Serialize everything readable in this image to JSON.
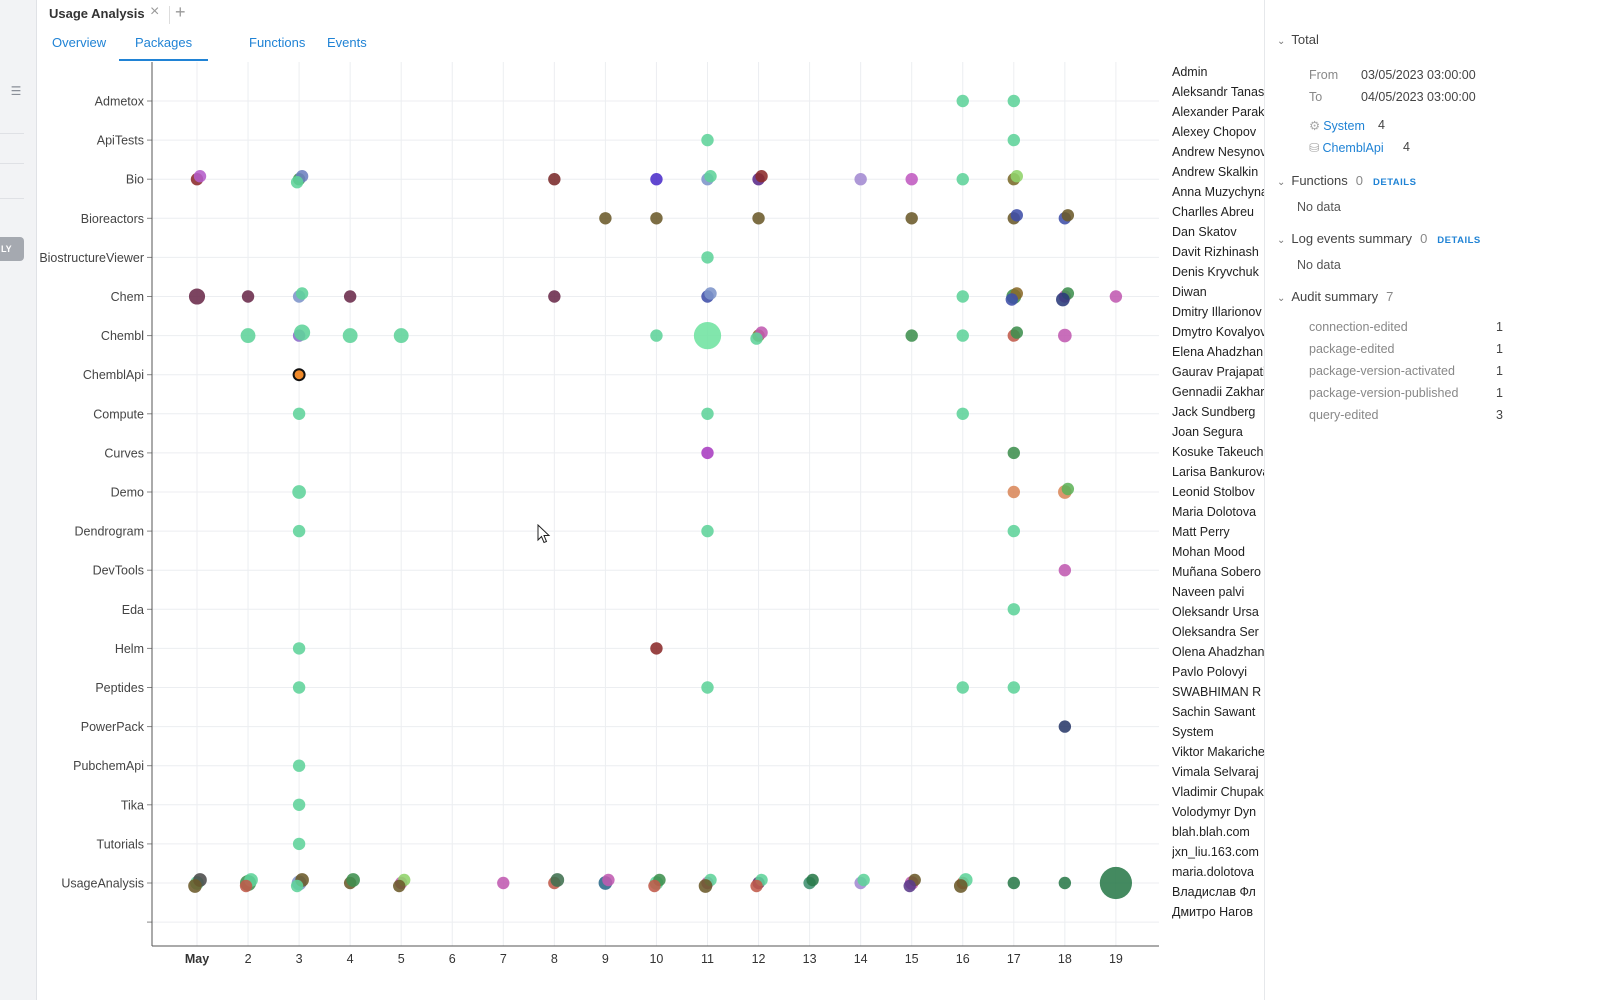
{
  "window": {
    "tab_title": "Usage Analysis"
  },
  "rail": {
    "tab_label": "LY"
  },
  "view_tabs": [
    "Overview",
    "Packages",
    "Functions",
    "Events"
  ],
  "active_view_tab": "Packages",
  "colors": {
    "accent": "#2083d5",
    "grid": "#eceef1",
    "axis": "#555555"
  },
  "chart_data": {
    "type": "scatter",
    "title": "",
    "xlabel": "",
    "ylabel": "",
    "x_ticks": [
      "May",
      "2",
      "3",
      "4",
      "5",
      "6",
      "7",
      "8",
      "9",
      "10",
      "11",
      "12",
      "13",
      "14",
      "15",
      "16",
      "17",
      "18",
      "19"
    ],
    "categories": [
      "Admetox",
      "ApiTests",
      "Bio",
      "Bioreactors",
      "BiostructureViewer",
      "Chem",
      "Chembl",
      "ChemblApi",
      "Compute",
      "Curves",
      "Demo",
      "Dendrogram",
      "DevTools",
      "Eda",
      "Helm",
      "Peptides",
      "PowerPack",
      "PubchemApi",
      "Tika",
      "Tutorials",
      "UsageAnalysis",
      ""
    ],
    "grid": true,
    "points": [
      {
        "x": 16,
        "cat": "Admetox",
        "color": "#5fd39a",
        "size": 1
      },
      {
        "x": 17,
        "cat": "Admetox",
        "color": "#5fd39a",
        "size": 1
      },
      {
        "x": 11,
        "cat": "ApiTests",
        "color": "#5fd39a",
        "size": 1
      },
      {
        "x": 17,
        "cat": "ApiTests",
        "color": "#5fd39a",
        "size": 1
      },
      {
        "x": 1,
        "cat": "Bio",
        "color": "#8b2a2a",
        "size": 1
      },
      {
        "x": 1,
        "cat": "Bio",
        "color": "#b45cc9",
        "size": 1
      },
      {
        "x": 3,
        "cat": "Bio",
        "color": "#3f8f4f",
        "size": 1
      },
      {
        "x": 3,
        "cat": "Bio",
        "color": "#6c7fbf",
        "size": 1
      },
      {
        "x": 3,
        "cat": "Bio",
        "color": "#5fd39a",
        "size": 1
      },
      {
        "x": 8,
        "cat": "Bio",
        "color": "#7a2a2a",
        "size": 1
      },
      {
        "x": 10,
        "cat": "Bio",
        "color": "#4b2ec9",
        "size": 1
      },
      {
        "x": 11,
        "cat": "Bio",
        "color": "#7d94c9",
        "size": 1
      },
      {
        "x": 11,
        "cat": "Bio",
        "color": "#5fd39a",
        "size": 1
      },
      {
        "x": 12,
        "cat": "Bio",
        "color": "#5a2a8a",
        "size": 1
      },
      {
        "x": 12,
        "cat": "Bio",
        "color": "#8b2a2a",
        "size": 1
      },
      {
        "x": 14,
        "cat": "Bio",
        "color": "#a38ad1",
        "size": 1
      },
      {
        "x": 15,
        "cat": "Bio",
        "color": "#c05ac0",
        "size": 1
      },
      {
        "x": 16,
        "cat": "Bio",
        "color": "#5fd39a",
        "size": 1
      },
      {
        "x": 17,
        "cat": "Bio",
        "color": "#7a6a2a",
        "size": 1
      },
      {
        "x": 17,
        "cat": "Bio",
        "color": "#8fd36a",
        "size": 1
      },
      {
        "x": 9,
        "cat": "Bioreactors",
        "color": "#6b5a2a",
        "size": 1
      },
      {
        "x": 10,
        "cat": "Bioreactors",
        "color": "#6b5a2a",
        "size": 1
      },
      {
        "x": 12,
        "cat": "Bioreactors",
        "color": "#6b5a2a",
        "size": 1
      },
      {
        "x": 15,
        "cat": "Bioreactors",
        "color": "#6b5a2a",
        "size": 1
      },
      {
        "x": 17,
        "cat": "Bioreactors",
        "color": "#6b5a2a",
        "size": 1
      },
      {
        "x": 17,
        "cat": "Bioreactors",
        "color": "#3f4fa8",
        "size": 1
      },
      {
        "x": 18,
        "cat": "Bioreactors",
        "color": "#3f4fa8",
        "size": 1
      },
      {
        "x": 18,
        "cat": "Bioreactors",
        "color": "#6b5a2a",
        "size": 1
      },
      {
        "x": 11,
        "cat": "BiostructureViewer",
        "color": "#5fd39a",
        "size": 1
      },
      {
        "x": 1,
        "cat": "Chem",
        "color": "#6a2a4a",
        "size": 1.3
      },
      {
        "x": 2,
        "cat": "Chem",
        "color": "#6a2a4a",
        "size": 1
      },
      {
        "x": 3,
        "cat": "Chem",
        "color": "#7d94c9",
        "size": 1
      },
      {
        "x": 3,
        "cat": "Chem",
        "color": "#5fd39a",
        "size": 1
      },
      {
        "x": 4,
        "cat": "Chem",
        "color": "#6a2a4a",
        "size": 1
      },
      {
        "x": 8,
        "cat": "Chem",
        "color": "#6a2a4a",
        "size": 1
      },
      {
        "x": 11,
        "cat": "Chem",
        "color": "#3f4fa8",
        "size": 1
      },
      {
        "x": 11,
        "cat": "Chem",
        "color": "#7d94c9",
        "size": 1
      },
      {
        "x": 16,
        "cat": "Chem",
        "color": "#5fd39a",
        "size": 1
      },
      {
        "x": 17,
        "cat": "Chem",
        "color": "#3f8f4f",
        "size": 1.2
      },
      {
        "x": 17,
        "cat": "Chem",
        "color": "#8a6a2a",
        "size": 1
      },
      {
        "x": 17,
        "cat": "Chem",
        "color": "#3f4fa8",
        "size": 1
      },
      {
        "x": 18,
        "cat": "Chem",
        "color": "#c05ab0",
        "size": 1
      },
      {
        "x": 18,
        "cat": "Chem",
        "color": "#3f8f4f",
        "size": 1
      },
      {
        "x": 18,
        "cat": "Chem",
        "color": "#2a3a7a",
        "size": 1.1
      },
      {
        "x": 19,
        "cat": "Chem",
        "color": "#c05ab0",
        "size": 1
      },
      {
        "x": 2,
        "cat": "Chembl",
        "color": "#5fd39a",
        "size": 1.2
      },
      {
        "x": 3,
        "cat": "Chembl",
        "color": "#8a6ac9",
        "size": 1
      },
      {
        "x": 3,
        "cat": "Chembl",
        "color": "#5fd39a",
        "size": 1.3
      },
      {
        "x": 4,
        "cat": "Chembl",
        "color": "#5fd39a",
        "size": 1.2
      },
      {
        "x": 5,
        "cat": "Chembl",
        "color": "#5fd39a",
        "size": 1.2
      },
      {
        "x": 10,
        "cat": "Chembl",
        "color": "#5fd39a",
        "size": 1
      },
      {
        "x": 11,
        "cat": "Chembl",
        "color": "#6fe3a0",
        "size": 2.2
      },
      {
        "x": 12,
        "cat": "Chembl",
        "color": "#8a6a2a",
        "size": 1
      },
      {
        "x": 12,
        "cat": "Chembl",
        "color": "#c05ab0",
        "size": 1
      },
      {
        "x": 12,
        "cat": "Chembl",
        "color": "#5fd39a",
        "size": 1
      },
      {
        "x": 15,
        "cat": "Chembl",
        "color": "#3f8f4f",
        "size": 1
      },
      {
        "x": 16,
        "cat": "Chembl",
        "color": "#5fd39a",
        "size": 1
      },
      {
        "x": 17,
        "cat": "Chembl",
        "color": "#c05a4a",
        "size": 1
      },
      {
        "x": 17,
        "cat": "Chembl",
        "color": "#3f8f4f",
        "size": 1
      },
      {
        "x": 18,
        "cat": "Chembl",
        "color": "#c05ab0",
        "size": 1.1
      },
      {
        "x": 3,
        "cat": "ChemblApi",
        "color": "#f08a2a",
        "size": 1,
        "selected": true
      },
      {
        "x": 3,
        "cat": "Compute",
        "color": "#5fd39a",
        "size": 1
      },
      {
        "x": 11,
        "cat": "Compute",
        "color": "#5fd39a",
        "size": 1
      },
      {
        "x": 16,
        "cat": "Compute",
        "color": "#5fd39a",
        "size": 1
      },
      {
        "x": 11,
        "cat": "Curves",
        "color": "#a83cc0",
        "size": 1
      },
      {
        "x": 17,
        "cat": "Curves",
        "color": "#3f8f4f",
        "size": 1
      },
      {
        "x": 3,
        "cat": "Demo",
        "color": "#5fd39a",
        "size": 1.1
      },
      {
        "x": 17,
        "cat": "Demo",
        "color": "#d9875a",
        "size": 1
      },
      {
        "x": 18,
        "cat": "Demo",
        "color": "#d9875a",
        "size": 1.1
      },
      {
        "x": 18,
        "cat": "Demo",
        "color": "#5fb35a",
        "size": 1
      },
      {
        "x": 3,
        "cat": "Dendrogram",
        "color": "#5fd39a",
        "size": 1
      },
      {
        "x": 11,
        "cat": "Dendrogram",
        "color": "#5fd39a",
        "size": 1
      },
      {
        "x": 17,
        "cat": "Dendrogram",
        "color": "#5fd39a",
        "size": 1
      },
      {
        "x": 18,
        "cat": "DevTools",
        "color": "#c05ab0",
        "size": 1
      },
      {
        "x": 17,
        "cat": "Eda",
        "color": "#5fd39a",
        "size": 1
      },
      {
        "x": 3,
        "cat": "Helm",
        "color": "#5fd39a",
        "size": 1
      },
      {
        "x": 10,
        "cat": "Helm",
        "color": "#8b2a2a",
        "size": 1
      },
      {
        "x": 3,
        "cat": "Peptides",
        "color": "#5fd39a",
        "size": 1
      },
      {
        "x": 11,
        "cat": "Peptides",
        "color": "#5fd39a",
        "size": 1
      },
      {
        "x": 16,
        "cat": "Peptides",
        "color": "#5fd39a",
        "size": 1
      },
      {
        "x": 17,
        "cat": "Peptides",
        "color": "#5fd39a",
        "size": 1
      },
      {
        "x": 18,
        "cat": "PowerPack",
        "color": "#2a3a6a",
        "size": 1
      },
      {
        "x": 3,
        "cat": "PubchemApi",
        "color": "#5fd39a",
        "size": 1
      },
      {
        "x": 3,
        "cat": "Tika",
        "color": "#5fd39a",
        "size": 1
      },
      {
        "x": 3,
        "cat": "Tutorials",
        "color": "#5fd39a",
        "size": 1
      },
      {
        "x": 1,
        "cat": "UsageAnalysis",
        "color": "#5fd39a",
        "size": 1.1
      },
      {
        "x": 1,
        "cat": "UsageAnalysis",
        "color": "#4a4a4a",
        "size": 1.1
      },
      {
        "x": 1,
        "cat": "UsageAnalysis",
        "color": "#6b5a2a",
        "size": 1.1
      },
      {
        "x": 2,
        "cat": "UsageAnalysis",
        "color": "#3f8f4f",
        "size": 1.3
      },
      {
        "x": 2,
        "cat": "UsageAnalysis",
        "color": "#5fd39a",
        "size": 1.1
      },
      {
        "x": 2,
        "cat": "UsageAnalysis",
        "color": "#c05a4a",
        "size": 1
      },
      {
        "x": 3,
        "cat": "UsageAnalysis",
        "color": "#7d94c9",
        "size": 1.2
      },
      {
        "x": 3,
        "cat": "UsageAnalysis",
        "color": "#6b5a2a",
        "size": 1.1
      },
      {
        "x": 3,
        "cat": "UsageAnalysis",
        "color": "#5fd39a",
        "size": 1
      },
      {
        "x": 4,
        "cat": "UsageAnalysis",
        "color": "#6b5a2a",
        "size": 1
      },
      {
        "x": 4,
        "cat": "UsageAnalysis",
        "color": "#3f8f4f",
        "size": 1.1
      },
      {
        "x": 5,
        "cat": "UsageAnalysis",
        "color": "#c05ab0",
        "size": 1
      },
      {
        "x": 5,
        "cat": "UsageAnalysis",
        "color": "#8fd36a",
        "size": 1
      },
      {
        "x": 5,
        "cat": "UsageAnalysis",
        "color": "#6b5a2a",
        "size": 1
      },
      {
        "x": 7,
        "cat": "UsageAnalysis",
        "color": "#c05ab0",
        "size": 1
      },
      {
        "x": 8,
        "cat": "UsageAnalysis",
        "color": "#c05a4a",
        "size": 1
      },
      {
        "x": 8,
        "cat": "UsageAnalysis",
        "color": "#3f6f4f",
        "size": 1.1
      },
      {
        "x": 9,
        "cat": "UsageAnalysis",
        "color": "#2a6a8a",
        "size": 1.1
      },
      {
        "x": 9,
        "cat": "UsageAnalysis",
        "color": "#c05ab0",
        "size": 1
      },
      {
        "x": 10,
        "cat": "UsageAnalysis",
        "color": "#5fd39a",
        "size": 1.1
      },
      {
        "x": 10,
        "cat": "UsageAnalysis",
        "color": "#3f8f4f",
        "size": 1
      },
      {
        "x": 10,
        "cat": "UsageAnalysis",
        "color": "#c05a4a",
        "size": 1
      },
      {
        "x": 11,
        "cat": "UsageAnalysis",
        "color": "#c05ab0",
        "size": 1
      },
      {
        "x": 11,
        "cat": "UsageAnalysis",
        "color": "#5fd39a",
        "size": 1
      },
      {
        "x": 11,
        "cat": "UsageAnalysis",
        "color": "#6b5a2a",
        "size": 1.1
      },
      {
        "x": 12,
        "cat": "UsageAnalysis",
        "color": "#5a2a6a",
        "size": 1
      },
      {
        "x": 12,
        "cat": "UsageAnalysis",
        "color": "#5fd39a",
        "size": 1
      },
      {
        "x": 12,
        "cat": "UsageAnalysis",
        "color": "#c05a4a",
        "size": 1
      },
      {
        "x": 13,
        "cat": "UsageAnalysis",
        "color": "#3f8f6f",
        "size": 1
      },
      {
        "x": 13,
        "cat": "UsageAnalysis",
        "color": "#2a7a4a",
        "size": 1
      },
      {
        "x": 14,
        "cat": "UsageAnalysis",
        "color": "#a38ad1",
        "size": 1
      },
      {
        "x": 14,
        "cat": "UsageAnalysis",
        "color": "#5fd39a",
        "size": 1
      },
      {
        "x": 15,
        "cat": "UsageAnalysis",
        "color": "#c05ab0",
        "size": 1.1
      },
      {
        "x": 15,
        "cat": "UsageAnalysis",
        "color": "#6b5a2a",
        "size": 1
      },
      {
        "x": 15,
        "cat": "UsageAnalysis",
        "color": "#5a3a8a",
        "size": 1
      },
      {
        "x": 16,
        "cat": "UsageAnalysis",
        "color": "#c05a4a",
        "size": 1
      },
      {
        "x": 16,
        "cat": "UsageAnalysis",
        "color": "#5fd39a",
        "size": 1.1
      },
      {
        "x": 16,
        "cat": "UsageAnalysis",
        "color": "#6b5a2a",
        "size": 1.1
      },
      {
        "x": 17,
        "cat": "UsageAnalysis",
        "color": "#2a7a4a",
        "size": 1
      },
      {
        "x": 18,
        "cat": "UsageAnalysis",
        "color": "#2a7a4a",
        "size": 1
      },
      {
        "x": 19,
        "cat": "UsageAnalysis",
        "color": "#2a7a4a",
        "size": 2.6
      }
    ]
  },
  "users": [
    "Admin",
    "Aleksandr Tanas",
    "Alexander Parak",
    "Alexey Chopov",
    "Andrew Nesynov",
    "Andrew Skalkin",
    "Anna Muzychyna",
    "Charlles Abreu",
    "Dan Skatov",
    "Davit Rizhinash",
    "Denis Kryvchuk",
    "Diwan",
    "Dmitry Illarionov",
    "Dmytro Kovalyov",
    "Elena Ahadzhan",
    "Gaurav Prajapati",
    "Gennadii Zakharov",
    "Jack Sundberg",
    "Joan Segura",
    "Kosuke Takeuchi",
    "Larisa Bankurova",
    "Leonid Stolbov",
    "Maria Dolotova",
    "Matt Perry",
    "Mohan Mood",
    "Muñana Sobero",
    "Naveen palvi",
    "Oleksandr Ursa",
    "Oleksandra Ser",
    "Olena Ahadzhan",
    "Pavlo Polovyi",
    "SWABHIMAN R",
    "Sachin Sawant",
    "System",
    "Viktor Makarichev",
    "Vimala Selvaraj",
    "Vladimir Chupakhin",
    "Volodymyr Dyn",
    "blah.blah.com",
    "jxn_liu.163.com",
    "maria.dolotova",
    "Владислав Фл",
    "Дмитро Нагов"
  ],
  "panel": {
    "total": {
      "title": "Total",
      "from_label": "From",
      "from_value": "03/05/2023 03:00:00",
      "to_label": "To",
      "to_value": "04/05/2023 03:00:00",
      "links": [
        {
          "name": "System",
          "count": "4"
        },
        {
          "name": "ChemblApi",
          "count": "4"
        }
      ]
    },
    "functions": {
      "title": "Functions",
      "count": "0",
      "details": "DETAILS",
      "empty": "No data"
    },
    "log_events": {
      "title": "Log events summary",
      "count": "0",
      "details": "DETAILS",
      "empty": "No data"
    },
    "audit": {
      "title": "Audit summary",
      "count": "7",
      "rows": [
        {
          "name": "connection-edited",
          "count": "1"
        },
        {
          "name": "package-edited",
          "count": "1"
        },
        {
          "name": "package-version-activated",
          "count": "1"
        },
        {
          "name": "package-version-published",
          "count": "1"
        },
        {
          "name": "query-edited",
          "count": "3"
        }
      ]
    }
  }
}
